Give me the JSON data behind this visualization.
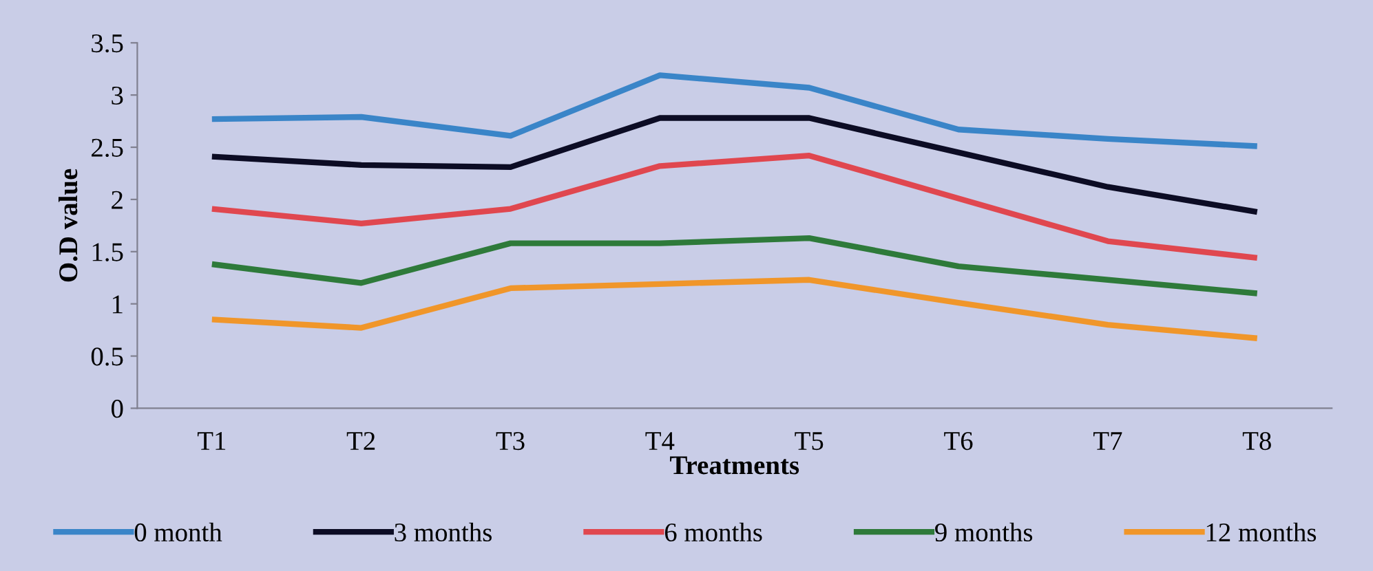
{
  "chart_data": {
    "type": "line",
    "xlabel": "Treatments",
    "ylabel": "O.D value",
    "categories": [
      "T1",
      "T2",
      "T3",
      "T4",
      "T5",
      "T6",
      "T7",
      "T8"
    ],
    "series": [
      {
        "name": "0 month",
        "color": "#3a85c8",
        "values": [
          2.77,
          2.79,
          2.61,
          3.19,
          3.07,
          2.67,
          2.58,
          2.51
        ]
      },
      {
        "name": "3 months",
        "color": "#0c0c24",
        "values": [
          2.41,
          2.33,
          2.31,
          2.78,
          2.78,
          2.45,
          2.12,
          1.88
        ]
      },
      {
        "name": "6 months",
        "color": "#e0474f",
        "values": [
          1.91,
          1.77,
          1.91,
          2.32,
          2.42,
          2.01,
          1.6,
          1.44
        ]
      },
      {
        "name": "9 months",
        "color": "#2e7a3a",
        "values": [
          1.38,
          1.2,
          1.58,
          1.58,
          1.63,
          1.36,
          1.23,
          1.1
        ]
      },
      {
        "name": "12 months",
        "color": "#f0962a",
        "values": [
          0.85,
          0.77,
          1.15,
          1.19,
          1.23,
          1.01,
          0.8,
          0.67
        ]
      }
    ],
    "ylim": [
      0,
      3.5
    ],
    "yticks": [
      0,
      0.5,
      1,
      1.5,
      2,
      2.5,
      3,
      3.5
    ],
    "grid": false,
    "legend": "bottom",
    "marker": "none",
    "line_style": "solid"
  }
}
